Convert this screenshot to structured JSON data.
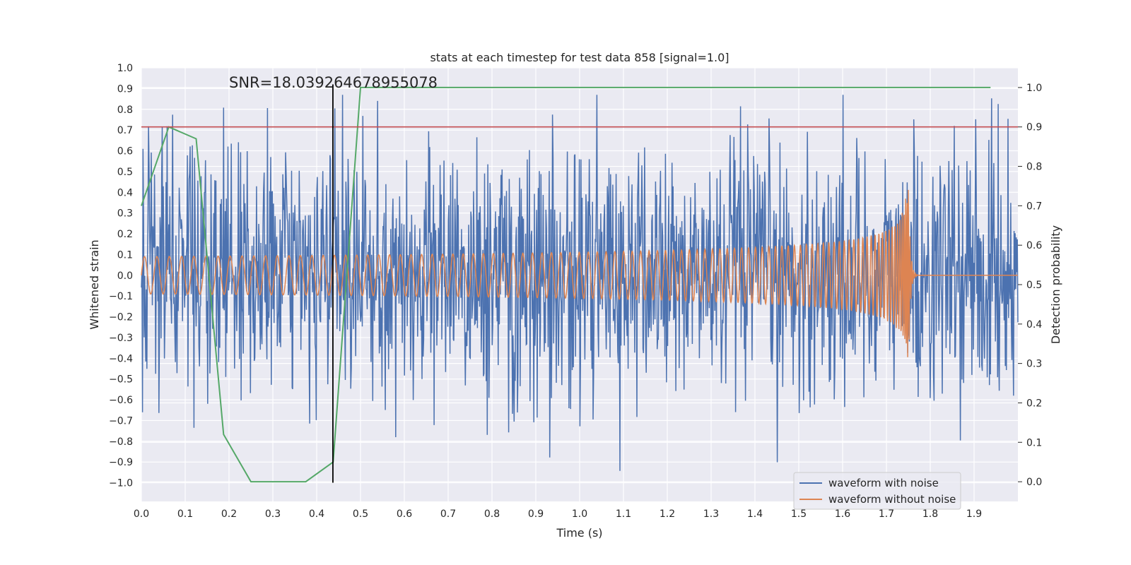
{
  "chart_data": {
    "type": "line",
    "title": "stats at each timestep for test data 858 [signal=1.0]",
    "xlabel": "Time (s)",
    "ylabel_left": "Whitened strain",
    "ylabel_right": "Detection probability",
    "annotation": "SNR=18.039264678955078",
    "xlim": [
      0.0,
      2.0
    ],
    "ylim_left": [
      -1.09,
      1.0
    ],
    "ylim_right": [
      -0.05,
      1.05
    ],
    "xticks": [
      "0.0",
      "0.1",
      "0.2",
      "0.3",
      "0.4",
      "0.5",
      "0.6",
      "0.7",
      "0.8",
      "0.9",
      "1.0",
      "1.1",
      "1.2",
      "1.3",
      "1.4",
      "1.5",
      "1.6",
      "1.7",
      "1.8",
      "1.9"
    ],
    "yticks_left": [
      "1.0",
      "0.9",
      "0.8",
      "0.7",
      "0.6",
      "0.5",
      "0.4",
      "0.3",
      "0.2",
      "0.1",
      "0.0",
      "−0.1",
      "−0.2",
      "−0.3",
      "−0.4",
      "−0.5",
      "−0.6",
      "−0.7",
      "−0.8",
      "−0.9",
      "−1.0"
    ],
    "yticks_right": [
      "1.0",
      "0.9",
      "0.8",
      "0.7",
      "0.6",
      "0.5",
      "0.4",
      "0.3",
      "0.2",
      "0.1",
      "0.0"
    ],
    "grid": true,
    "legend": {
      "placement": "lower-right",
      "entries": [
        {
          "label": "waveform with noise",
          "color": "#4c72b0"
        },
        {
          "label": "waveform without noise",
          "color": "#dd8452"
        }
      ]
    },
    "series": [
      {
        "name": "waveform with noise",
        "axis": "left",
        "color": "#4c72b0",
        "noise_std": 0.3,
        "x_range": [
          0.0,
          2.0
        ]
      },
      {
        "name": "waveform without noise",
        "axis": "left",
        "color": "#dd8452",
        "model": "chirp",
        "x_range": [
          0.0,
          2.0
        ],
        "merger_time": 1.75,
        "amplitude_start": 0.09,
        "amplitude_peak": 0.5
      },
      {
        "axis": "right",
        "color": "#55a868",
        "x": [
          0.0,
          0.0625,
          0.125,
          0.1875,
          0.25,
          0.3125,
          0.375,
          0.4375,
          0.5,
          0.5625,
          1.9375
        ],
        "y": [
          0.7,
          0.9,
          0.87,
          0.12,
          0.0,
          0.0,
          0.0,
          0.05,
          1.0,
          1.0,
          1.0
        ]
      },
      {
        "axis": "right",
        "color": "#c44e52",
        "type": "hline",
        "y": 0.9
      },
      {
        "axis": "left",
        "color": "#000000",
        "type": "vline",
        "x": 0.437,
        "y_range": [
          -1.0,
          0.92
        ]
      }
    ]
  }
}
